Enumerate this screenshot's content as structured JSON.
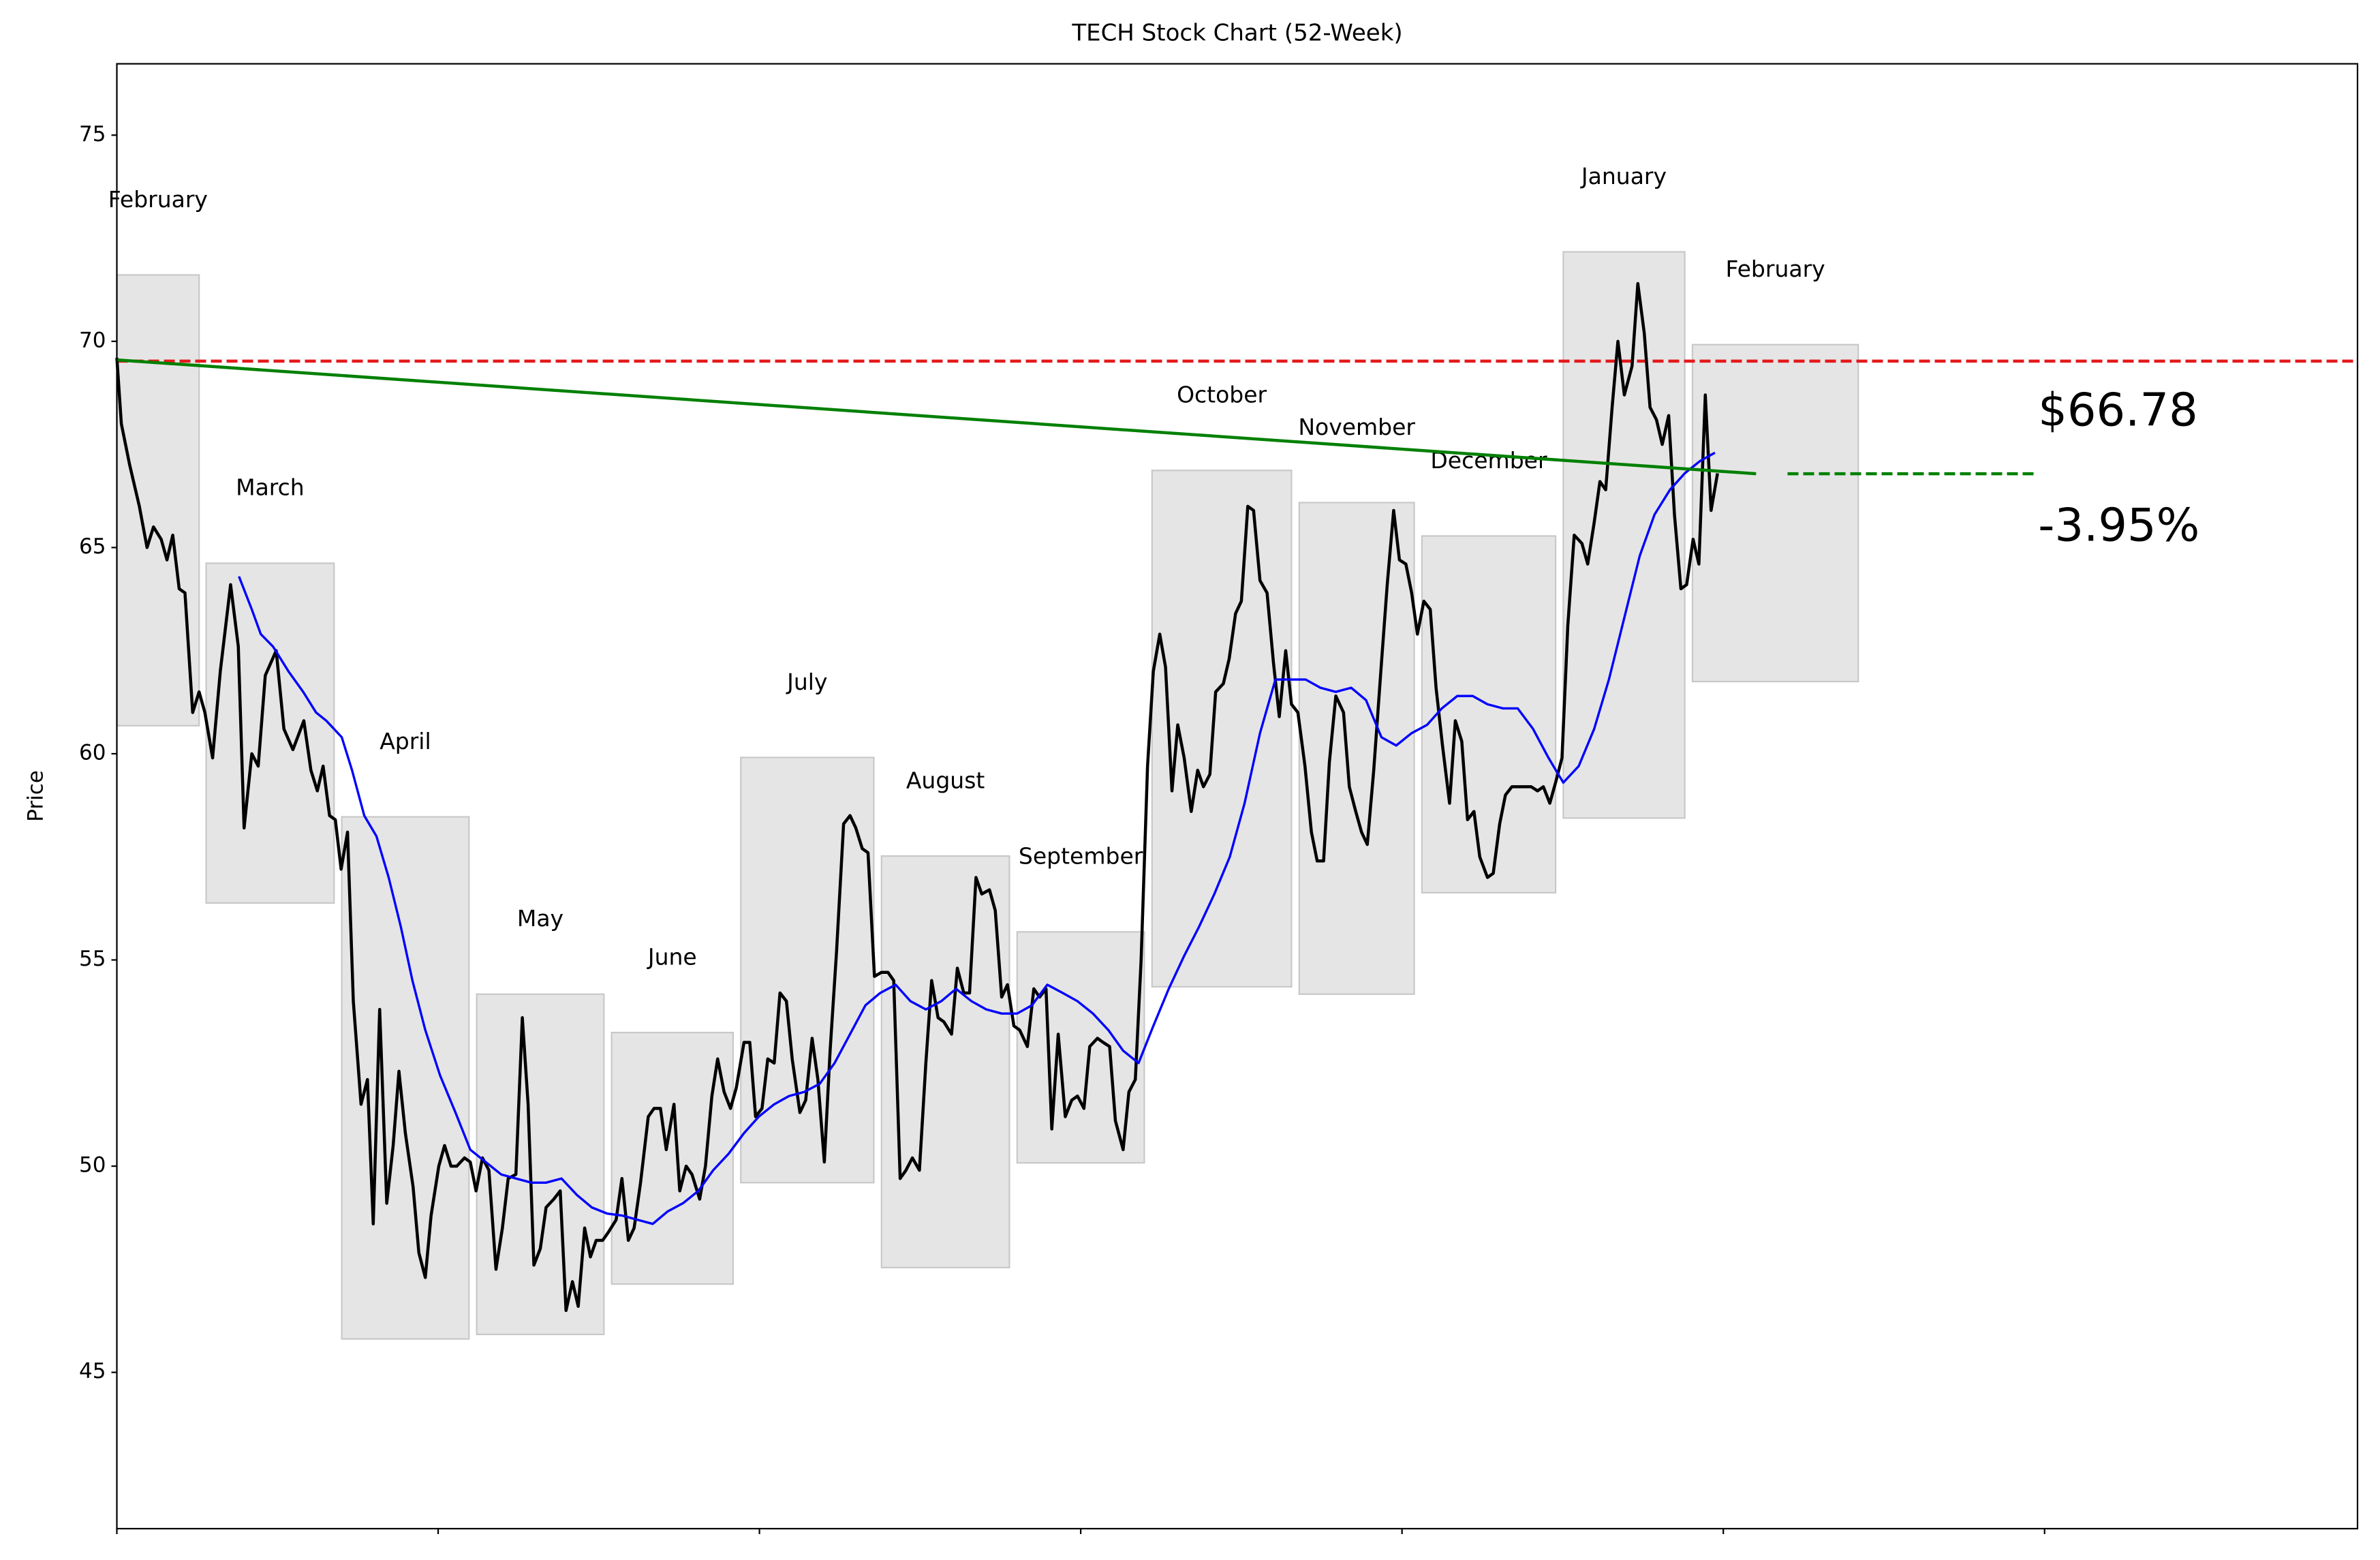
{
  "chart_data": {
    "type": "line",
    "title": "TECH Stock Chart (52-Week)",
    "ylabel": "Price",
    "xlim": [
      0,
      348.7
    ],
    "ylim": [
      41.21,
      76.73
    ],
    "xticks": [
      0,
      50,
      100,
      150,
      200,
      250,
      300
    ],
    "yticks": [
      45,
      50,
      55,
      60,
      65,
      70,
      75
    ],
    "months": [
      {
        "label": "February",
        "x": [
          0,
          12.8
        ],
        "y": [
          60.68,
          71.61
        ]
      },
      {
        "label": "March",
        "x": [
          13.9,
          33.8
        ],
        "y": [
          56.38,
          64.62
        ]
      },
      {
        "label": "April",
        "x": [
          35.0,
          54.8
        ],
        "y": [
          45.81,
          58.47
        ]
      },
      {
        "label": "May",
        "x": [
          56.0,
          75.8
        ],
        "y": [
          45.92,
          54.17
        ]
      },
      {
        "label": "June",
        "x": [
          77.0,
          95.9
        ],
        "y": [
          47.14,
          53.24
        ]
      },
      {
        "label": "July",
        "x": [
          97.1,
          117.8
        ],
        "y": [
          49.6,
          59.91
        ]
      },
      {
        "label": "August",
        "x": [
          119.0,
          138.9
        ],
        "y": [
          47.54,
          57.52
        ]
      },
      {
        "label": "September",
        "x": [
          140.1,
          159.9
        ],
        "y": [
          50.08,
          55.68
        ]
      },
      {
        "label": "October",
        "x": [
          161.1,
          182.8
        ],
        "y": [
          54.35,
          66.87
        ]
      },
      {
        "label": "November",
        "x": [
          184.0,
          201.9
        ],
        "y": [
          54.17,
          66.09
        ]
      },
      {
        "label": "December",
        "x": [
          203.1,
          223.9
        ],
        "y": [
          56.63,
          65.28
        ]
      },
      {
        "label": "January",
        "x": [
          225.1,
          244.0
        ],
        "y": [
          58.44,
          72.17
        ]
      },
      {
        "label": "February",
        "x": [
          245.2,
          271.0
        ],
        "y": [
          61.75,
          69.92
        ]
      }
    ],
    "series": [
      {
        "color": "#000000",
        "x": [
          0,
          0.7,
          2,
          3.5,
          4.7,
          5.7,
          6.9,
          7.8,
          8.7,
          9.7,
          10.6,
          11.8,
          12.8,
          13.7,
          14.9,
          16.1,
          17.7,
          18.9,
          19.8,
          21,
          22,
          23.1,
          24.8,
          26,
          27.4,
          29.1,
          30.2,
          31.2,
          32.1,
          33.1,
          34,
          34.9,
          35.9,
          36.8,
          38,
          39,
          39.9,
          40.9,
          42,
          43,
          43.9,
          44.9,
          46.1,
          47,
          48,
          48.9,
          50.1,
          51,
          52,
          52.9,
          54.1,
          55,
          55.9,
          56.9,
          57.9,
          59,
          60,
          60.9,
          62.1,
          63.1,
          64,
          64.9,
          65.9,
          66.8,
          68,
          69,
          69.9,
          70.9,
          71.8,
          72.8,
          73.7,
          74.6,
          75.6,
          76.5,
          77.7,
          78.6,
          79.6,
          80.5,
          81.5,
          82.7,
          83.6,
          84.6,
          85.5,
          86.7,
          87.6,
          88.6,
          89.5,
          90.7,
          91.6,
          92.6,
          93.5,
          94.5,
          95.5,
          96.4,
          97.6,
          98.5,
          99.4,
          100.4,
          101.3,
          102.3,
          103.2,
          104.2,
          105.1,
          106.3,
          107.2,
          108.2,
          109.1,
          110.1,
          111,
          112,
          113.1,
          114.1,
          115,
          116,
          116.9,
          117.9,
          119,
          120,
          120.9,
          121.9,
          122.8,
          123.8,
          124.9,
          125.9,
          126.8,
          127.8,
          128.7,
          129.9,
          130.8,
          131.8,
          132.7,
          133.7,
          134.6,
          135.8,
          136.7,
          137.7,
          138.6,
          139.6,
          140.5,
          141.7,
          142.7,
          143.6,
          144.6,
          145.5,
          146.5,
          147.6,
          148.6,
          149.5,
          150.5,
          151.4,
          152.6,
          153.5,
          154.5,
          155.4,
          156.6,
          157.5,
          158.5,
          159.4,
          160.4,
          161.3,
          162.3,
          163.2,
          164.2,
          165.1,
          166.1,
          167.2,
          168.2,
          169.1,
          170.1,
          171,
          172.2,
          173.1,
          174.1,
          175,
          176,
          176.9,
          177.9,
          179,
          180,
          180.9,
          181.9,
          182.8,
          183.8,
          184.9,
          185.9,
          186.8,
          187.8,
          188.7,
          189.7,
          190.9,
          191.8,
          192.8,
          193.7,
          194.6,
          195.6,
          196.8,
          197.7,
          198.7,
          199.6,
          200.6,
          201.5,
          202.4,
          203.4,
          204.4,
          205.3,
          206.3,
          207.4,
          208.3,
          209.3,
          210.2,
          211.2,
          212.1,
          213.3,
          214.2,
          215.2,
          216.1,
          217.1,
          218,
          219.2,
          220.1,
          221.1,
          222,
          223,
          223.9,
          224.9,
          225.8,
          226.8,
          228,
          228.9,
          229.9,
          230.8,
          231.7,
          232.7,
          233.6,
          234.6,
          235.8,
          236.7,
          237.7,
          238.6,
          239.6,
          240.5,
          241.5,
          242.4,
          243.4,
          244.3,
          245.3,
          246.2,
          247.2,
          248.1,
          249.1
        ],
        "values": [
          69.6,
          68,
          67,
          66,
          65,
          65.5,
          65.2,
          64.7,
          65.3,
          64,
          63.9,
          61,
          61.5,
          61,
          59.9,
          62,
          64.1,
          62.6,
          58.2,
          60,
          59.7,
          61.9,
          62.5,
          60.6,
          60.1,
          60.8,
          59.6,
          59.1,
          59.7,
          58.5,
          58.4,
          57.2,
          58.1,
          54,
          51.5,
          52.1,
          48.6,
          53.8,
          49.1,
          50.5,
          52.3,
          50.8,
          49.5,
          47.9,
          47.3,
          48.8,
          50,
          50.5,
          50,
          50,
          50.2,
          50.1,
          49.4,
          50.2,
          49.9,
          47.5,
          48.5,
          49.7,
          49.8,
          53.6,
          51.5,
          47.6,
          48,
          49,
          49.2,
          49.4,
          46.5,
          47.2,
          46.6,
          48.5,
          47.8,
          48.2,
          48.2,
          48.4,
          48.7,
          49.7,
          48.2,
          48.5,
          49.6,
          51.2,
          51.4,
          51.4,
          50.4,
          51.5,
          49.4,
          50,
          49.8,
          49.2,
          50,
          51.7,
          52.6,
          51.8,
          51.4,
          51.9,
          53,
          53,
          51.2,
          51.4,
          52.6,
          52.5,
          54.2,
          54,
          52.6,
          51.3,
          51.6,
          53.1,
          52.1,
          50.1,
          52.8,
          55.2,
          58.3,
          58.5,
          58.2,
          57.7,
          57.6,
          54.6,
          54.7,
          54.7,
          54.5,
          49.7,
          49.9,
          50.2,
          49.9,
          52.5,
          54.5,
          53.6,
          53.5,
          53.2,
          54.8,
          54.2,
          54.2,
          57,
          56.6,
          56.7,
          56.2,
          54.1,
          54.4,
          53.4,
          53.3,
          52.9,
          54.3,
          54.1,
          54.3,
          50.9,
          53.2,
          51.2,
          51.6,
          51.7,
          51.4,
          52.9,
          53.1,
          53,
          52.9,
          51.1,
          50.4,
          51.8,
          52.1,
          55,
          59.7,
          62,
          62.9,
          62.1,
          59.1,
          60.7,
          59.9,
          58.6,
          59.6,
          59.2,
          59.5,
          61.5,
          61.7,
          62.3,
          63.4,
          63.7,
          66,
          65.9,
          64.2,
          63.9,
          62.2,
          60.9,
          62.5,
          61.2,
          61,
          59.7,
          58.1,
          57.4,
          57.4,
          59.8,
          61.4,
          61,
          59.2,
          58.6,
          58.1,
          57.8,
          59.6,
          62.2,
          64.1,
          65.9,
          64.7,
          64.6,
          63.9,
          62.9,
          63.7,
          63.5,
          61.6,
          60.2,
          58.8,
          60.8,
          60.3,
          58.4,
          58.6,
          57.5,
          57,
          57.1,
          58.3,
          59,
          59.2,
          59.2,
          59.2,
          59.2,
          59.1,
          59.2,
          58.8,
          59.3,
          59.9,
          63.1,
          65.3,
          65.1,
          64.6,
          65.6,
          66.6,
          66.4,
          68.4,
          70,
          68.7,
          69.4,
          71.4,
          70.2,
          68.4,
          68.1,
          67.5,
          68.2,
          65.8,
          64,
          64.1,
          65.2,
          64.6,
          68.7,
          65.9,
          66.8
        ]
      },
      {
        "color": "#0000ff",
        "x": [
          19,
          21,
          22.4,
          24.3,
          26.7,
          29,
          31,
          32.6,
          35,
          36.6,
          38.5,
          40.4,
          42.3,
          44.2,
          46,
          48,
          50.3,
          52.7,
          55,
          57.4,
          59.8,
          62.1,
          64.5,
          66.8,
          69.2,
          71.6,
          73.9,
          76.3,
          78.7,
          81,
          83.4,
          85.7,
          88.1,
          90.5,
          92.8,
          95.2,
          97.6,
          99.9,
          102.3,
          104.6,
          107,
          109.4,
          111.7,
          114.1,
          116.5,
          118.8,
          121.2,
          123.5,
          125.9,
          128.3,
          130.6,
          133,
          135.3,
          137.7,
          140.1,
          142.4,
          144.8,
          147.2,
          149.5,
          151.9,
          154.3,
          156.6,
          159,
          161.3,
          163.7,
          166.1,
          168.4,
          170.8,
          173.2,
          175.5,
          177.9,
          180.3,
          182.6,
          185,
          187.3,
          189.7,
          192.1,
          194.4,
          196.8,
          199.1,
          201.5,
          203.9,
          206.2,
          208.6,
          211,
          213.3,
          215.7,
          218,
          220.4,
          222.8,
          225.1,
          227.5,
          229.9,
          232.2,
          234.6,
          237,
          239.3,
          241.7,
          244,
          246.4,
          248.7
        ],
        "values": [
          64.3,
          63.5,
          62.9,
          62.6,
          62,
          61.5,
          61,
          60.8,
          60.4,
          59.6,
          58.5,
          58,
          57,
          55.8,
          54.5,
          53.3,
          52.2,
          51.3,
          50.4,
          50.1,
          49.8,
          49.7,
          49.6,
          49.6,
          49.7,
          49.3,
          49,
          48.85,
          48.8,
          48.7,
          48.6,
          48.9,
          49.1,
          49.4,
          49.9,
          50.3,
          50.8,
          51.2,
          51.5,
          51.7,
          51.8,
          52,
          52.5,
          53.2,
          53.9,
          54.2,
          54.4,
          54,
          53.8,
          54,
          54.3,
          54,
          53.8,
          53.7,
          53.7,
          53.9,
          54.4,
          54.2,
          54,
          53.7,
          53.3,
          52.8,
          52.5,
          53.4,
          54.3,
          55.1,
          55.8,
          56.6,
          57.5,
          58.8,
          60.5,
          61.8,
          61.8,
          61.8,
          61.6,
          61.5,
          61.6,
          61.3,
          60.4,
          60.2,
          60.5,
          60.7,
          61.1,
          61.4,
          61.4,
          61.2,
          61.1,
          61.1,
          60.6,
          59.9,
          59.3,
          59.7,
          60.6,
          61.8,
          63.3,
          64.8,
          65.8,
          66.4,
          66.8,
          67.1,
          67.3
        ]
      }
    ],
    "hline": {
      "y": 69.52,
      "color": "#e41a1c"
    },
    "trend": {
      "x": [
        0,
        255.1
      ],
      "y": [
        69.55,
        66.79
      ],
      "color": "#008000"
    },
    "projection": {
      "x": [
        260,
        299
      ],
      "y": [
        66.79,
        66.79
      ],
      "color": "#008000"
    },
    "annotations": [
      {
        "text": "$66.78",
        "color": "#0000ff"
      },
      {
        "text": "-3.95%",
        "color": "#0000ff"
      }
    ]
  }
}
